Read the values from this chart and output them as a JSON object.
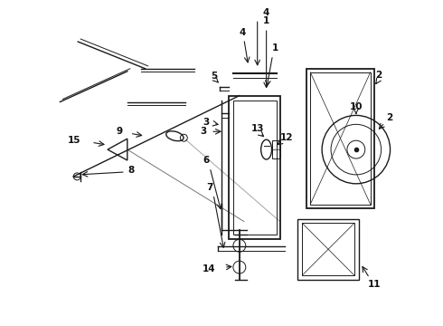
{
  "background_color": "#ffffff",
  "line_color": "#1a1a1a",
  "label_color": "#111111",
  "figsize": [
    4.9,
    3.6
  ],
  "dpi": 100
}
